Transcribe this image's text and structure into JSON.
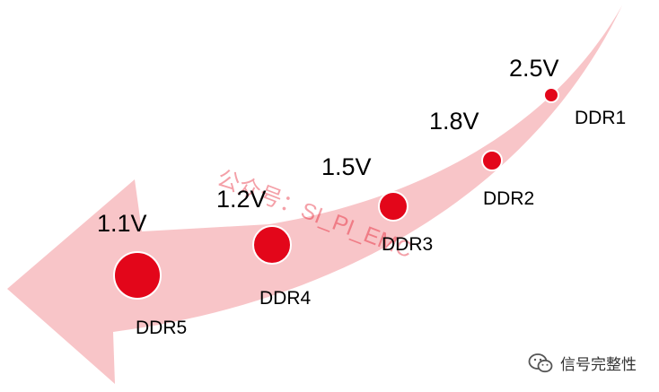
{
  "items": [
    {
      "voltage": "2.5V",
      "name": "DDR1"
    },
    {
      "voltage": "1.8V",
      "name": "DDR2"
    },
    {
      "voltage": "1.5V",
      "name": "DDR3"
    },
    {
      "voltage": "1.2V",
      "name": "DDR4"
    },
    {
      "voltage": "1.1V",
      "name": "DDR5"
    }
  ],
  "watermark": "公众号：SI_PI_EMC",
  "footer": {
    "account": "信号完整性",
    "icon": "wechat-icon"
  },
  "colors": {
    "arrow": "#f8c5c8",
    "dot": "#e3061a",
    "dot_edge": "#ffffff",
    "text": "#000000"
  }
}
